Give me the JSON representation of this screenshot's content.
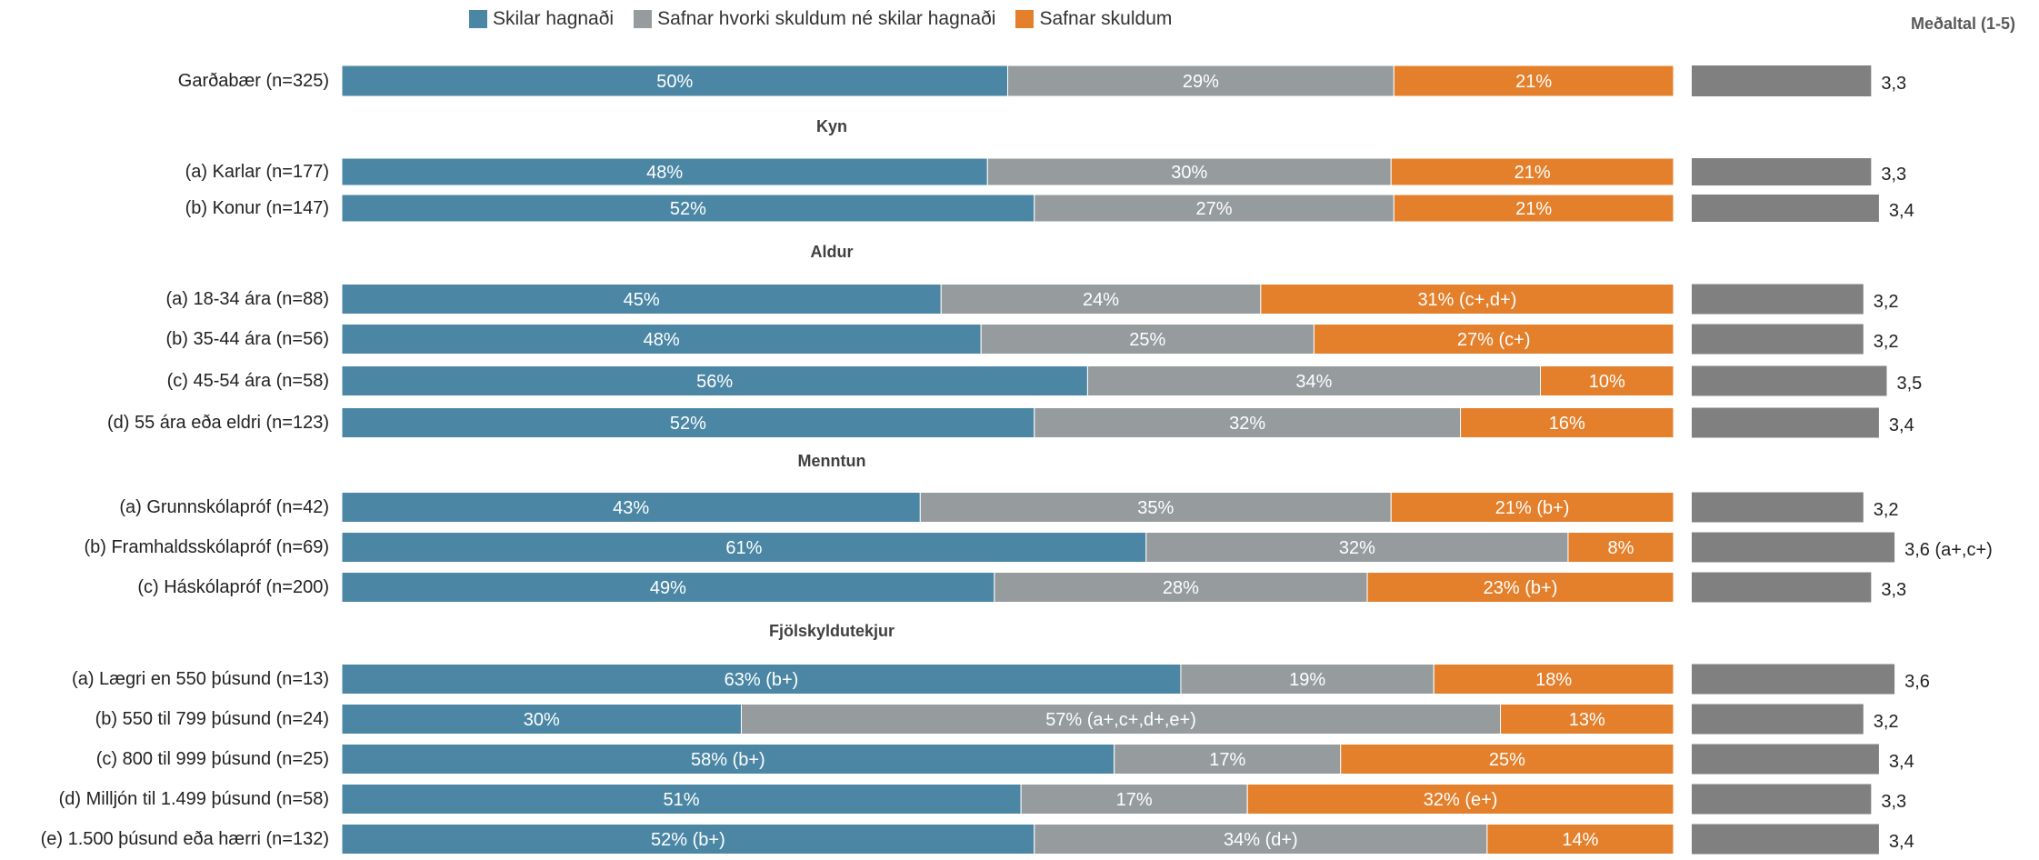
{
  "chart_data": {
    "type": "bar",
    "orientation": "horizontal",
    "stacked": true,
    "legend_position": "top",
    "grid": false,
    "series": [
      {
        "name": "Skilar hagnaði",
        "color": "#4b87a5"
      },
      {
        "name": "Safnar hvorki skuldum né skilar hagnaði",
        "color": "#969c9e"
      },
      {
        "name": "Safnar skuldum",
        "color": "#e4802c"
      }
    ],
    "mean_title": "Meðaltal (1-5)",
    "mean_range": [
      1,
      5
    ],
    "mean_color": "#808080",
    "groups": [
      {
        "rows": [
          {
            "label": "Garðabær (n=325)",
            "values": [
              50,
              29,
              21
            ],
            "value_labels": [
              "50%",
              "29%",
              "21%"
            ],
            "mean": 3.3,
            "mean_label": "3,3"
          }
        ]
      },
      {
        "title": "Kyn",
        "rows": [
          {
            "label": "(a) Karlar (n=177)",
            "values": [
              48,
              30,
              21
            ],
            "value_labels": [
              "48%",
              "30%",
              "21%"
            ],
            "mean": 3.3,
            "mean_label": "3,3"
          },
          {
            "label": "(b) Konur (n=147)",
            "values": [
              52,
              27,
              21
            ],
            "value_labels": [
              "52%",
              "27%",
              "21%"
            ],
            "mean": 3.4,
            "mean_label": "3,4"
          }
        ]
      },
      {
        "title": "Aldur",
        "rows": [
          {
            "label": "(a) 18-34 ára (n=88)",
            "values": [
              45,
              24,
              31
            ],
            "value_labels": [
              "45%",
              "24%",
              "31% (c+,d+)"
            ],
            "mean": 3.2,
            "mean_label": "3,2"
          },
          {
            "label": "(b) 35-44 ára (n=56)",
            "values": [
              48,
              25,
              27
            ],
            "value_labels": [
              "48%",
              "25%",
              "27% (c+)"
            ],
            "mean": 3.2,
            "mean_label": "3,2"
          },
          {
            "label": "(c) 45-54 ára (n=58)",
            "values": [
              56,
              34,
              10
            ],
            "value_labels": [
              "56%",
              "34%",
              "10%"
            ],
            "mean": 3.5,
            "mean_label": "3,5"
          },
          {
            "label": "(d) 55 ára eða eldri (n=123)",
            "values": [
              52,
              32,
              16
            ],
            "value_labels": [
              "52%",
              "32%",
              "16%"
            ],
            "mean": 3.4,
            "mean_label": "3,4"
          }
        ]
      },
      {
        "title": "Menntun",
        "rows": [
          {
            "label": "(a) Grunnskólapróf (n=42)",
            "values": [
              43,
              35,
              21
            ],
            "value_labels": [
              "43%",
              "35%",
              "21% (b+)"
            ],
            "mean": 3.2,
            "mean_label": "3,2"
          },
          {
            "label": "(b) Framhaldsskólapróf (n=69)",
            "values": [
              61,
              32,
              8
            ],
            "value_labels": [
              "61%",
              "32%",
              "8%"
            ],
            "mean": 3.6,
            "mean_label": "3,6 (a+,c+)"
          },
          {
            "label": "(c) Háskólapróf (n=200)",
            "values": [
              49,
              28,
              23
            ],
            "value_labels": [
              "49%",
              "28%",
              "23% (b+)"
            ],
            "mean": 3.3,
            "mean_label": "3,3"
          }
        ]
      },
      {
        "title": "Fjölskyldutekjur",
        "rows": [
          {
            "label": "(a) Lægri en 550 þúsund (n=13)",
            "values": [
              63,
              19,
              18
            ],
            "value_labels": [
              "63% (b+)",
              "19%",
              "18%"
            ],
            "mean": 3.6,
            "mean_label": "3,6"
          },
          {
            "label": "(b) 550 til 799 þúsund (n=24)",
            "values": [
              30,
              57,
              13
            ],
            "value_labels": [
              "30%",
              "57% (a+,c+,d+,e+)",
              "13%"
            ],
            "mean": 3.2,
            "mean_label": "3,2"
          },
          {
            "label": "(c) 800 til 999 þúsund (n=25)",
            "values": [
              58,
              17,
              25
            ],
            "value_labels": [
              "58% (b+)",
              "17%",
              "25%"
            ],
            "mean": 3.4,
            "mean_label": "3,4"
          },
          {
            "label": "(d) Milljón til 1.499 þúsund (n=58)",
            "values": [
              51,
              17,
              32
            ],
            "value_labels": [
              "51%",
              "17%",
              "32% (e+)"
            ],
            "mean": 3.3,
            "mean_label": "3,3"
          },
          {
            "label": "(e) 1.500 þúsund eða hærri (n=132)",
            "values": [
              52,
              34,
              14
            ],
            "value_labels": [
              "52% (b+)",
              "34% (d+)",
              "14%"
            ],
            "mean": 3.4,
            "mean_label": "3,4"
          }
        ]
      }
    ]
  }
}
